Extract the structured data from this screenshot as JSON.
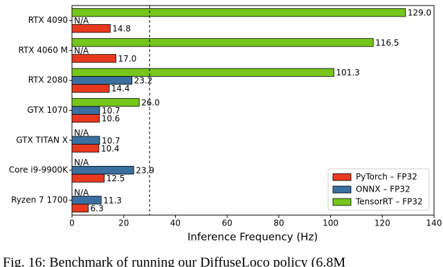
{
  "chart_data": {
    "type": "hbar",
    "categories": [
      "RTX 4090",
      "RTX 4060 M",
      "RTX 2080",
      "GTX 1070",
      "GTX TITAN X",
      "Core i9-9900K",
      "Ryzen 7 1700"
    ],
    "series": [
      {
        "name": "PyTorch – FP32",
        "color": "#e8391f",
        "values": [
          14.8,
          17.0,
          14.4,
          10.6,
          10.4,
          12.5,
          6.3
        ],
        "value_labels": [
          "14.8",
          "17.0",
          "14.4",
          "10.6",
          "10.4",
          "12.5",
          "6.3"
        ]
      },
      {
        "name": "ONNX – FP32",
        "color": "#3a6fa0",
        "values": [
          null,
          null,
          23.2,
          10.7,
          10.7,
          23.9,
          11.3
        ],
        "value_labels": [
          "N/A",
          "N/A",
          "23.2",
          "10.7",
          "10.7",
          "23.9",
          "11.3"
        ]
      },
      {
        "name": "TensorRT – FP32",
        "color": "#76c61c",
        "values": [
          129.0,
          116.5,
          101.3,
          26.0,
          null,
          null,
          null
        ],
        "value_labels": [
          "129.0",
          "116.5",
          "101.3",
          "26.0",
          "N/A",
          "N/A",
          "N/A"
        ]
      }
    ],
    "xlabel": "Inference Frequency (Hz)",
    "xlim": [
      0,
      140
    ],
    "xticks": [
      0,
      20,
      40,
      60,
      80,
      100,
      120,
      140
    ],
    "reference_line": 30,
    "legend": "lower right",
    "caption": "Fig. 16: Benchmark of running our DiffuseLoco policy (6.8M"
  }
}
